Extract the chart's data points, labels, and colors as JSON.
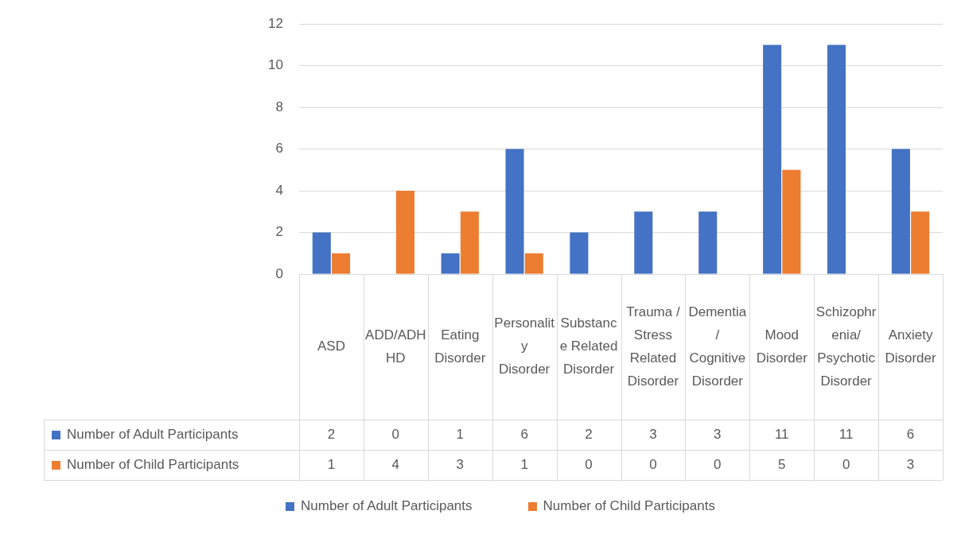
{
  "chart_data": {
    "type": "bar",
    "categories": [
      "ASD",
      "ADD/ADHHD",
      "Eating Disorder",
      "Personality Disorder",
      "Substance Related Disorder",
      "Trauma / Stress Related Disorder",
      "Dementia/ Cognitive Disorder",
      "Mood Disorder",
      "Schizophrenia/ Psychotic Disorder",
      "Anxiety Disorder"
    ],
    "series": [
      {
        "name": "Number of Adult Participants",
        "color": "#4472c4",
        "values": [
          2,
          0,
          1,
          6,
          2,
          3,
          3,
          11,
          11,
          6
        ]
      },
      {
        "name": "Number of Child Participants",
        "color": "#ed7d31",
        "values": [
          1,
          4,
          3,
          1,
          0,
          0,
          0,
          5,
          0,
          3
        ]
      }
    ],
    "ylim": [
      0,
      12
    ],
    "yticks": [
      0,
      2,
      4,
      6,
      8,
      10,
      12
    ],
    "grid": "y",
    "legend": "bottom",
    "data_labels": true
  }
}
